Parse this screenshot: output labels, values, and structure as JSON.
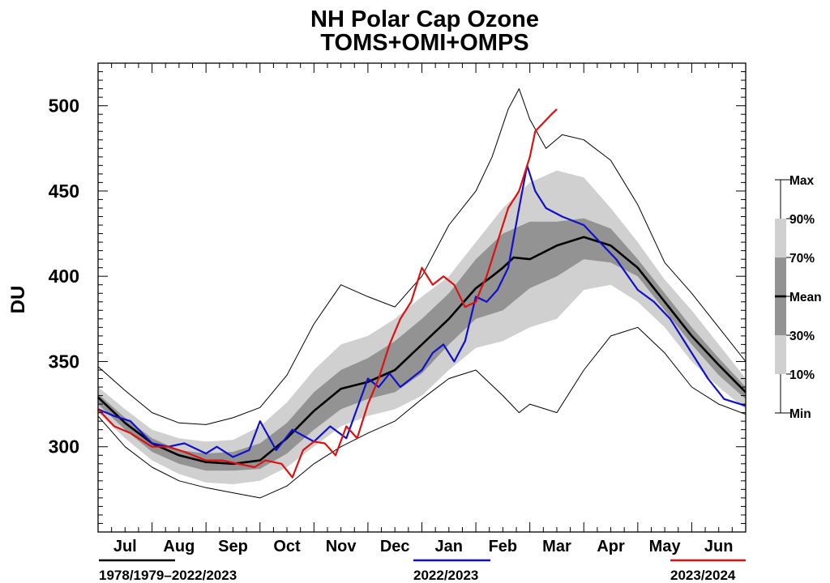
{
  "chart_data": {
    "type": "line",
    "title": "NH Polar Cap Ozone",
    "subtitle": "TOMS+OMI+OMPS",
    "ylabel": "DU",
    "xlabel": "",
    "ylim": [
      250,
      525
    ],
    "y_ticks": [
      300,
      350,
      400,
      450,
      500
    ],
    "x_range_months": [
      0,
      12
    ],
    "months": [
      "Jul",
      "Aug",
      "Sep",
      "Oct",
      "Nov",
      "Dec",
      "Jan",
      "Feb",
      "Mar",
      "Apr",
      "May",
      "Jun"
    ],
    "band_legend": [
      "Max",
      "90%",
      "70%",
      "Mean",
      "30%",
      "10%",
      "Min"
    ],
    "colors": {
      "climatology": "#000000",
      "band_outer": "#d0d0d0",
      "band_inner": "#939393",
      "prev_year": "#1010cc",
      "curr_year": "#dd1111"
    },
    "series": [
      {
        "name": "Max",
        "role": "max",
        "x": [
          0,
          0.5,
          1,
          1.5,
          2,
          2.5,
          3,
          3.5,
          4,
          4.5,
          5,
          5.5,
          6,
          6.5,
          7,
          7.3,
          7.6,
          7.8,
          8,
          8.3,
          8.6,
          9,
          9.5,
          10,
          10.5,
          11,
          11.5,
          12
        ],
        "y": [
          347,
          333,
          320,
          314,
          313,
          317,
          323,
          342,
          372,
          395,
          388,
          382,
          400,
          430,
          450,
          470,
          498,
          510,
          492,
          475,
          483,
          480,
          468,
          442,
          408,
          390,
          370,
          350
        ]
      },
      {
        "name": "90%",
        "role": "p90",
        "x": [
          0,
          0.5,
          1,
          1.5,
          2,
          2.5,
          3,
          3.5,
          4,
          4.5,
          5,
          5.5,
          6,
          6.5,
          7,
          7.5,
          8,
          8.5,
          9,
          9.5,
          10,
          10.5,
          11,
          11.5,
          12
        ],
        "y": [
          335,
          322,
          310,
          305,
          303,
          304,
          312,
          326,
          345,
          360,
          365,
          375,
          388,
          400,
          420,
          440,
          455,
          462,
          458,
          440,
          420,
          398,
          380,
          360,
          340
        ]
      },
      {
        "name": "70%",
        "role": "p70",
        "x": [
          0,
          0.5,
          1,
          1.5,
          2,
          2.5,
          3,
          3.5,
          4,
          4.5,
          5,
          5.5,
          6,
          6.5,
          7,
          7.5,
          8,
          8.5,
          9,
          9.5,
          10,
          10.5,
          11,
          11.5,
          12
        ],
        "y": [
          331,
          317,
          305,
          298,
          296,
          297,
          302,
          314,
          332,
          345,
          352,
          362,
          375,
          390,
          410,
          425,
          432,
          432,
          434,
          428,
          410,
          390,
          370,
          352,
          335
        ]
      },
      {
        "name": "Mean",
        "role": "mean",
        "x": [
          0,
          0.5,
          1,
          1.5,
          2,
          2.5,
          3,
          3.5,
          4,
          4.5,
          5,
          5.5,
          6,
          6.5,
          7,
          7.3,
          7.5,
          7.7,
          8,
          8.5,
          9,
          9.5,
          10,
          10.5,
          11,
          11.5,
          12
        ],
        "y": [
          329,
          314,
          302,
          295,
          291,
          290,
          292,
          305,
          321,
          334,
          338,
          345,
          360,
          375,
          393,
          400,
          405,
          411,
          410,
          418,
          423,
          418,
          405,
          385,
          365,
          348,
          332
        ]
      },
      {
        "name": "30%",
        "role": "p30",
        "x": [
          0,
          0.5,
          1,
          1.5,
          2,
          2.5,
          3,
          3.5,
          4,
          4.5,
          5,
          5.5,
          6,
          6.5,
          7,
          7.5,
          8,
          8.5,
          9,
          9.5,
          10,
          10.5,
          11,
          11.5,
          12
        ],
        "y": [
          325,
          310,
          297,
          290,
          286,
          286,
          287,
          296,
          310,
          322,
          328,
          332,
          343,
          360,
          375,
          380,
          393,
          400,
          410,
          408,
          400,
          380,
          360,
          342,
          328
        ]
      },
      {
        "name": "10%",
        "role": "p10",
        "x": [
          0,
          0.5,
          1,
          1.5,
          2,
          2.5,
          3,
          3.5,
          4,
          4.5,
          5,
          5.5,
          6,
          6.5,
          7,
          7.5,
          8,
          8.5,
          9,
          9.5,
          10,
          10.5,
          11,
          11.5,
          12
        ],
        "y": [
          320,
          305,
          292,
          284,
          279,
          278,
          280,
          288,
          300,
          312,
          318,
          322,
          330,
          345,
          358,
          362,
          370,
          375,
          392,
          395,
          385,
          370,
          350,
          335,
          322
        ]
      },
      {
        "name": "Min",
        "role": "min",
        "x": [
          0,
          0.5,
          1,
          1.5,
          2,
          2.5,
          3,
          3.5,
          4,
          4.5,
          5,
          5.5,
          6,
          6.5,
          7,
          7.5,
          7.8,
          8,
          8.5,
          9,
          9.5,
          10,
          10.5,
          11,
          11.5,
          12
        ],
        "y": [
          318,
          300,
          288,
          280,
          276,
          273,
          270,
          277,
          290,
          300,
          308,
          315,
          328,
          340,
          345,
          330,
          320,
          325,
          320,
          345,
          365,
          370,
          355,
          335,
          325,
          319
        ]
      },
      {
        "name": "2022/2023",
        "role": "prev",
        "x": [
          0,
          0.3,
          0.6,
          1,
          1.3,
          1.6,
          2,
          2.2,
          2.5,
          2.8,
          3,
          3.3,
          3.6,
          4,
          4.3,
          4.6,
          5,
          5.2,
          5.4,
          5.6,
          5.8,
          6,
          6.2,
          6.4,
          6.6,
          6.8,
          7,
          7.2,
          7.4,
          7.6,
          7.8,
          7.95,
          8.1,
          8.3,
          8.6,
          9,
          9.3,
          9.6,
          10,
          10.3,
          10.6,
          11,
          11.3,
          11.6,
          12
        ],
        "y": [
          322,
          318,
          315,
          302,
          300,
          302,
          296,
          300,
          294,
          298,
          315,
          298,
          310,
          303,
          312,
          305,
          340,
          335,
          343,
          335,
          340,
          345,
          355,
          360,
          350,
          362,
          388,
          385,
          392,
          405,
          440,
          465,
          450,
          440,
          435,
          430,
          420,
          410,
          392,
          385,
          375,
          355,
          340,
          328,
          324
        ]
      },
      {
        "name": "2023/2024",
        "role": "curr",
        "x": [
          0,
          0.3,
          0.6,
          1,
          1.3,
          1.6,
          2,
          2.3,
          2.6,
          2.9,
          3.1,
          3.4,
          3.6,
          3.8,
          4,
          4.2,
          4.4,
          4.6,
          4.8,
          5,
          5.2,
          5.4,
          5.6,
          5.8,
          6,
          6.2,
          6.4,
          6.6,
          6.8,
          7,
          7.1,
          7.2,
          7.4,
          7.6,
          7.8,
          8,
          8.1,
          8.25,
          8.4,
          8.5
        ],
        "y": [
          322,
          312,
          308,
          300,
          300,
          297,
          292,
          292,
          290,
          288,
          292,
          290,
          282,
          298,
          303,
          302,
          295,
          312,
          305,
          325,
          340,
          360,
          375,
          385,
          405,
          395,
          400,
          395,
          382,
          385,
          393,
          400,
          420,
          440,
          450,
          470,
          485,
          490,
          495,
          498
        ]
      }
    ]
  },
  "legend_bottom": {
    "climatology_label": "1978/1979–2022/2023",
    "prev_label": "2022/2023",
    "curr_label": "2023/2024"
  }
}
